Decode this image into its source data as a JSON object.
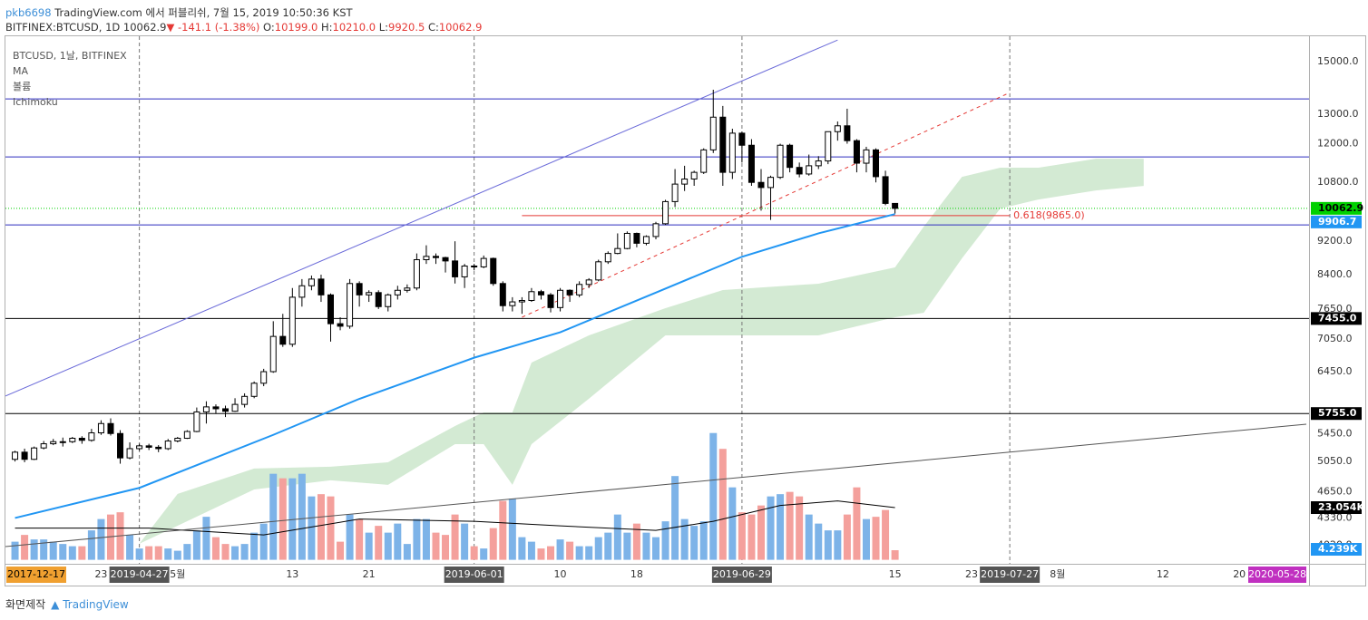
{
  "header": {
    "user": "pkb6698",
    "published": "TradingView.com 에서 퍼블리쉬, 7월 15, 2019 10:50:36 KST",
    "symbol": "BITFINEX:BTCUSD, 1D",
    "price": "10062.9",
    "arrow": "▼",
    "change": "-141.1 (-1.38%)",
    "ohlc": [
      "O:",
      "10199.0",
      "H:",
      "10210.0",
      "L:",
      "9920.5",
      "C:",
      "10062.9"
    ]
  },
  "footer": {
    "caption": "화면제작",
    "brand": "TradingView"
  },
  "chart_data": {
    "type": "candlestick",
    "legend": [
      "BTCUSD, 1날, BITFINEX",
      "MA",
      "볼륨",
      "Ichimoku"
    ],
    "xlim": [
      "2019-04-13",
      "2019-08-27"
    ],
    "ylim": [
      3822,
      16080
    ],
    "log_scale": true,
    "yticks": [
      {
        "value": 15000,
        "label": "15000.0"
      },
      {
        "value": 13000,
        "label": "13000.0"
      },
      {
        "value": 12000,
        "label": "12000.0"
      },
      {
        "value": 10800,
        "label": "10800.0"
      },
      {
        "value": 9200,
        "label": "9200.0"
      },
      {
        "value": 8400,
        "label": "8400.0"
      },
      {
        "value": 7650,
        "label": "7650.0"
      },
      {
        "value": 7050,
        "label": "7050.0"
      },
      {
        "value": 6450,
        "label": "6450.0"
      },
      {
        "value": 5450,
        "label": "5450.0"
      },
      {
        "value": 5050,
        "label": "5050.0"
      },
      {
        "value": 4650,
        "label": "4650.0"
      },
      {
        "value": 4330,
        "label": "4330.0"
      },
      {
        "value": 4020,
        "label": "4020.0"
      }
    ],
    "xticks": [
      {
        "value": "2019-04-23",
        "label": "23"
      },
      {
        "value": "2019-05-01",
        "label": "5월"
      },
      {
        "value": "2019-05-13",
        "label": "13"
      },
      {
        "value": "2019-05-21",
        "label": "21"
      },
      {
        "value": "2019-06-10",
        "label": "10"
      },
      {
        "value": "2019-06-18",
        "label": "18"
      },
      {
        "value": "2019-07-15",
        "label": "15"
      },
      {
        "value": "2019-07-23",
        "label": "23"
      },
      {
        "value": "2019-08-01",
        "label": "8월"
      },
      {
        "value": "2019-08-12",
        "label": "12"
      },
      {
        "value": "2019-08-20",
        "label": "20"
      }
    ],
    "x_markers": [
      "2019-04-27",
      "2019-06-01",
      "2019-06-29",
      "2019-07-27"
    ],
    "corner_dates": [
      "2017-12-17",
      "2020-05-28"
    ],
    "up_color": "#ffffff",
    "down_color": "#000000",
    "x": [
      "2019-04-14",
      "2019-04-15",
      "2019-04-16",
      "2019-04-17",
      "2019-04-18",
      "2019-04-19",
      "2019-04-20",
      "2019-04-21",
      "2019-04-22",
      "2019-04-23",
      "2019-04-24",
      "2019-04-25",
      "2019-04-26",
      "2019-04-27",
      "2019-04-28",
      "2019-04-29",
      "2019-04-30",
      "2019-05-01",
      "2019-05-02",
      "2019-05-03",
      "2019-05-04",
      "2019-05-05",
      "2019-05-06",
      "2019-05-07",
      "2019-05-08",
      "2019-05-09",
      "2019-05-10",
      "2019-05-11",
      "2019-05-12",
      "2019-05-13",
      "2019-05-14",
      "2019-05-15",
      "2019-05-16",
      "2019-05-17",
      "2019-05-18",
      "2019-05-19",
      "2019-05-20",
      "2019-05-21",
      "2019-05-22",
      "2019-05-23",
      "2019-05-24",
      "2019-05-25",
      "2019-05-26",
      "2019-05-27",
      "2019-05-28",
      "2019-05-29",
      "2019-05-30",
      "2019-05-31",
      "2019-06-01",
      "2019-06-02",
      "2019-06-03",
      "2019-06-04",
      "2019-06-05",
      "2019-06-06",
      "2019-06-07",
      "2019-06-08",
      "2019-06-09",
      "2019-06-10",
      "2019-06-11",
      "2019-06-12",
      "2019-06-13",
      "2019-06-14",
      "2019-06-15",
      "2019-06-16",
      "2019-06-17",
      "2019-06-18",
      "2019-06-19",
      "2019-06-20",
      "2019-06-21",
      "2019-06-22",
      "2019-06-23",
      "2019-06-24",
      "2019-06-25",
      "2019-06-26",
      "2019-06-27",
      "2019-06-28",
      "2019-06-29",
      "2019-06-30",
      "2019-07-01",
      "2019-07-02",
      "2019-07-03",
      "2019-07-04",
      "2019-07-05",
      "2019-07-06",
      "2019-07-07",
      "2019-07-08",
      "2019-07-09",
      "2019-07-10",
      "2019-07-11",
      "2019-07-12",
      "2019-07-13",
      "2019-07-14",
      "2019-07-15"
    ],
    "ohlc": [
      [
        5080,
        5200,
        5050,
        5180
      ],
      [
        5180,
        5230,
        5040,
        5080
      ],
      [
        5080,
        5260,
        5070,
        5240
      ],
      [
        5240,
        5340,
        5220,
        5300
      ],
      [
        5300,
        5370,
        5280,
        5330
      ],
      [
        5330,
        5390,
        5260,
        5330
      ],
      [
        5330,
        5400,
        5310,
        5380
      ],
      [
        5380,
        5410,
        5300,
        5350
      ],
      [
        5350,
        5520,
        5330,
        5460
      ],
      [
        5460,
        5650,
        5430,
        5600
      ],
      [
        5600,
        5680,
        5420,
        5450
      ],
      [
        5450,
        5500,
        5020,
        5100
      ],
      [
        5100,
        5320,
        5080,
        5230
      ],
      [
        5230,
        5300,
        5200,
        5270
      ],
      [
        5270,
        5300,
        5210,
        5250
      ],
      [
        5250,
        5280,
        5180,
        5230
      ],
      [
        5230,
        5370,
        5210,
        5340
      ],
      [
        5340,
        5400,
        5320,
        5380
      ],
      [
        5380,
        5500,
        5370,
        5480
      ],
      [
        5480,
        5850,
        5470,
        5780
      ],
      [
        5780,
        5950,
        5600,
        5860
      ],
      [
        5860,
        5900,
        5750,
        5830
      ],
      [
        5830,
        5880,
        5700,
        5790
      ],
      [
        5790,
        6000,
        5780,
        5900
      ],
      [
        5900,
        6080,
        5850,
        6030
      ],
      [
        6030,
        6280,
        6000,
        6250
      ],
      [
        6250,
        6500,
        6200,
        6450
      ],
      [
        6450,
        7400,
        6430,
        7100
      ],
      [
        7100,
        7550,
        6900,
        6950
      ],
      [
        6950,
        8100,
        6900,
        7900
      ],
      [
        7900,
        8300,
        7700,
        8150
      ],
      [
        8150,
        8380,
        8050,
        8300
      ],
      [
        8300,
        8400,
        7800,
        7950
      ],
      [
        7950,
        7980,
        7000,
        7350
      ],
      [
        7350,
        7480,
        7220,
        7300
      ],
      [
        7300,
        8300,
        7250,
        8200
      ],
      [
        8200,
        8250,
        7700,
        7950
      ],
      [
        7950,
        8050,
        7800,
        8000
      ],
      [
        8000,
        8050,
        7650,
        7700
      ],
      [
        7700,
        7980,
        7600,
        7950
      ],
      [
        7950,
        8150,
        7850,
        8050
      ],
      [
        8050,
        8180,
        8000,
        8100
      ],
      [
        8100,
        8900,
        8050,
        8750
      ],
      [
        8750,
        9100,
        8650,
        8830
      ],
      [
        8830,
        8900,
        8650,
        8800
      ],
      [
        8800,
        8820,
        8450,
        8720
      ],
      [
        8720,
        9200,
        8200,
        8350
      ],
      [
        8350,
        8650,
        8100,
        8600
      ],
      [
        8600,
        8650,
        8500,
        8580
      ],
      [
        8580,
        8850,
        8550,
        8780
      ],
      [
        8780,
        8800,
        8150,
        8200
      ],
      [
        8200,
        8250,
        7600,
        7720
      ],
      [
        7720,
        7900,
        7600,
        7800
      ],
      [
        7800,
        7900,
        7550,
        7830
      ],
      [
        7830,
        8100,
        7800,
        8020
      ],
      [
        8020,
        8060,
        7850,
        7950
      ],
      [
        7950,
        7990,
        7580,
        7680
      ],
      [
        7680,
        8100,
        7600,
        8050
      ],
      [
        8050,
        8070,
        7800,
        7950
      ],
      [
        7950,
        8250,
        7900,
        8180
      ],
      [
        8180,
        8320,
        8100,
        8280
      ],
      [
        8280,
        8750,
        8250,
        8700
      ],
      [
        8700,
        8950,
        8650,
        8900
      ],
      [
        8900,
        9400,
        8880,
        9020
      ],
      [
        9020,
        9450,
        9000,
        9400
      ],
      [
        9400,
        9420,
        9050,
        9150
      ],
      [
        9150,
        9350,
        9100,
        9320
      ],
      [
        9320,
        9700,
        9250,
        9650
      ],
      [
        9650,
        10300,
        9620,
        10250
      ],
      [
        10250,
        11200,
        10100,
        10750
      ],
      [
        10750,
        11300,
        10550,
        10900
      ],
      [
        10900,
        11150,
        10700,
        11100
      ],
      [
        11100,
        11850,
        11050,
        11800
      ],
      [
        11800,
        13900,
        11700,
        12900
      ],
      [
        12900,
        13300,
        10700,
        11100
      ],
      [
        11100,
        12500,
        10900,
        12350
      ],
      [
        12350,
        12400,
        11400,
        11950
      ],
      [
        11950,
        12150,
        10700,
        10800
      ],
      [
        10800,
        11200,
        10000,
        10650
      ],
      [
        10650,
        11000,
        9750,
        10950
      ],
      [
        10950,
        12000,
        10900,
        11950
      ],
      [
        11950,
        12000,
        11100,
        11250
      ],
      [
        11250,
        11400,
        10950,
        11050
      ],
      [
        11050,
        11650,
        11000,
        11300
      ],
      [
        11300,
        11600,
        11200,
        11450
      ],
      [
        11450,
        12400,
        11350,
        12400
      ],
      [
        12400,
        12750,
        12100,
        12600
      ],
      [
        12600,
        13200,
        12000,
        12100
      ],
      [
        12100,
        12150,
        11100,
        11380
      ],
      [
        11380,
        11900,
        11100,
        11800
      ],
      [
        11800,
        11850,
        10800,
        10970
      ],
      [
        10970,
        11150,
        10150,
        10199
      ],
      [
        10199,
        10210,
        9920.5,
        10062.9
      ]
    ],
    "volume": [
      8,
      11,
      9,
      9,
      8,
      7,
      6,
      6,
      13,
      18,
      20,
      21,
      11,
      5,
      6,
      6,
      5,
      4,
      7,
      13,
      19,
      10,
      7,
      6,
      7,
      12,
      16,
      38,
      36,
      36,
      38,
      28,
      29,
      28,
      8,
      20,
      18,
      12,
      15,
      12,
      16,
      7,
      18,
      18,
      12,
      11,
      20,
      16,
      6,
      5,
      14,
      26,
      27,
      10,
      8,
      5,
      6,
      9,
      8,
      6,
      6,
      10,
      12,
      20,
      12,
      16,
      12,
      10,
      17,
      37,
      18,
      15,
      17,
      56,
      49,
      32,
      21,
      20,
      24,
      28,
      29,
      30,
      28,
      20,
      16,
      13,
      13,
      20,
      32,
      18,
      19,
      22,
      4.239
    ],
    "volume_last_label": "4.239K",
    "volume_lim": [
      0,
      100
    ],
    "volume_up_color": "#7db3e8",
    "volume_down_color": "#f4a09c",
    "volume_ma": {
      "x": [
        "2019-04-14",
        "2019-04-28",
        "2019-05-10",
        "2019-05-20",
        "2019-06-01",
        "2019-06-10",
        "2019-06-20",
        "2019-06-26",
        "2019-07-03",
        "2019-07-09",
        "2019-07-15"
      ],
      "values": [
        14,
        14,
        11,
        18,
        17,
        15,
        13,
        17,
        24,
        26,
        23.054
      ],
      "last_label": "23.054K",
      "color": "#000000"
    },
    "ma": {
      "x": [
        "2019-04-14",
        "2019-04-27",
        "2019-05-11",
        "2019-05-20",
        "2019-06-01",
        "2019-06-10",
        "2019-06-20",
        "2019-06-29",
        "2019-07-07",
        "2019-07-15"
      ],
      "values": [
        4330,
        4700,
        5430,
        5990,
        6700,
        7180,
        8000,
        8820,
        9400,
        9906.7
      ],
      "color": "#2196f3"
    },
    "cloud": {
      "x": [
        "2019-04-27",
        "2019-05-01",
        "2019-05-09",
        "2019-05-17",
        "2019-05-23",
        "2019-05-30",
        "2019-06-02",
        "2019-06-05",
        "2019-06-07",
        "2019-06-13",
        "2019-06-21",
        "2019-06-27",
        "2019-07-07",
        "2019-07-15",
        "2019-07-18",
        "2019-07-22",
        "2019-07-26",
        "2019-07-30",
        "2019-08-05",
        "2019-08-10"
      ],
      "upper": [
        4037,
        4623,
        4954,
        4979,
        5040,
        5563,
        5773,
        5773,
        6612,
        7120,
        7667,
        8055,
        8196,
        8568,
        9573,
        10965,
        11240,
        11240,
        11520,
        11520
      ],
      "lower": [
        4037,
        4240,
        4680,
        4798,
        4739,
        5295,
        5295,
        4739,
        5295,
        5991,
        7120,
        7120,
        7120,
        7480,
        7572,
        8781,
        10057,
        10309,
        10566,
        10698
      ],
      "color": "#d3ead3"
    },
    "last_price": {
      "value": 10062.9,
      "color": "#00d000"
    },
    "hlines": [
      {
        "value": 13557,
        "color": "#2e2ebf"
      },
      {
        "value": 11575,
        "color": "#2e2ebf"
      },
      {
        "value": 9620,
        "color": "#2e2ebf"
      },
      {
        "value": 7455,
        "color": "#000000",
        "label": "7455.0"
      },
      {
        "value": 5755,
        "color": "#000000",
        "label": "5755.0"
      }
    ],
    "fib": {
      "value": 9865,
      "from": "2019-06-06",
      "to": "2019-07-27",
      "label": "0.618(9865.0)",
      "color": "#e53935"
    },
    "trendlines": [
      {
        "color": "#6b6bd9",
        "points": [
          {
            "x": "2019-04-13",
            "y": 6036
          },
          {
            "x": "2019-07-09",
            "y": 15916
          }
        ]
      },
      {
        "color": "#e53935",
        "dash": true,
        "points": [
          {
            "x": "2019-06-06",
            "y": 7480
          },
          {
            "x": "2019-07-27",
            "y": 13793
          }
        ]
      },
      {
        "color": "#555555",
        "points": [
          {
            "x": "2019-04-13",
            "y": 4005
          },
          {
            "x": "2019-08-27",
            "y": 5590
          }
        ]
      }
    ]
  }
}
